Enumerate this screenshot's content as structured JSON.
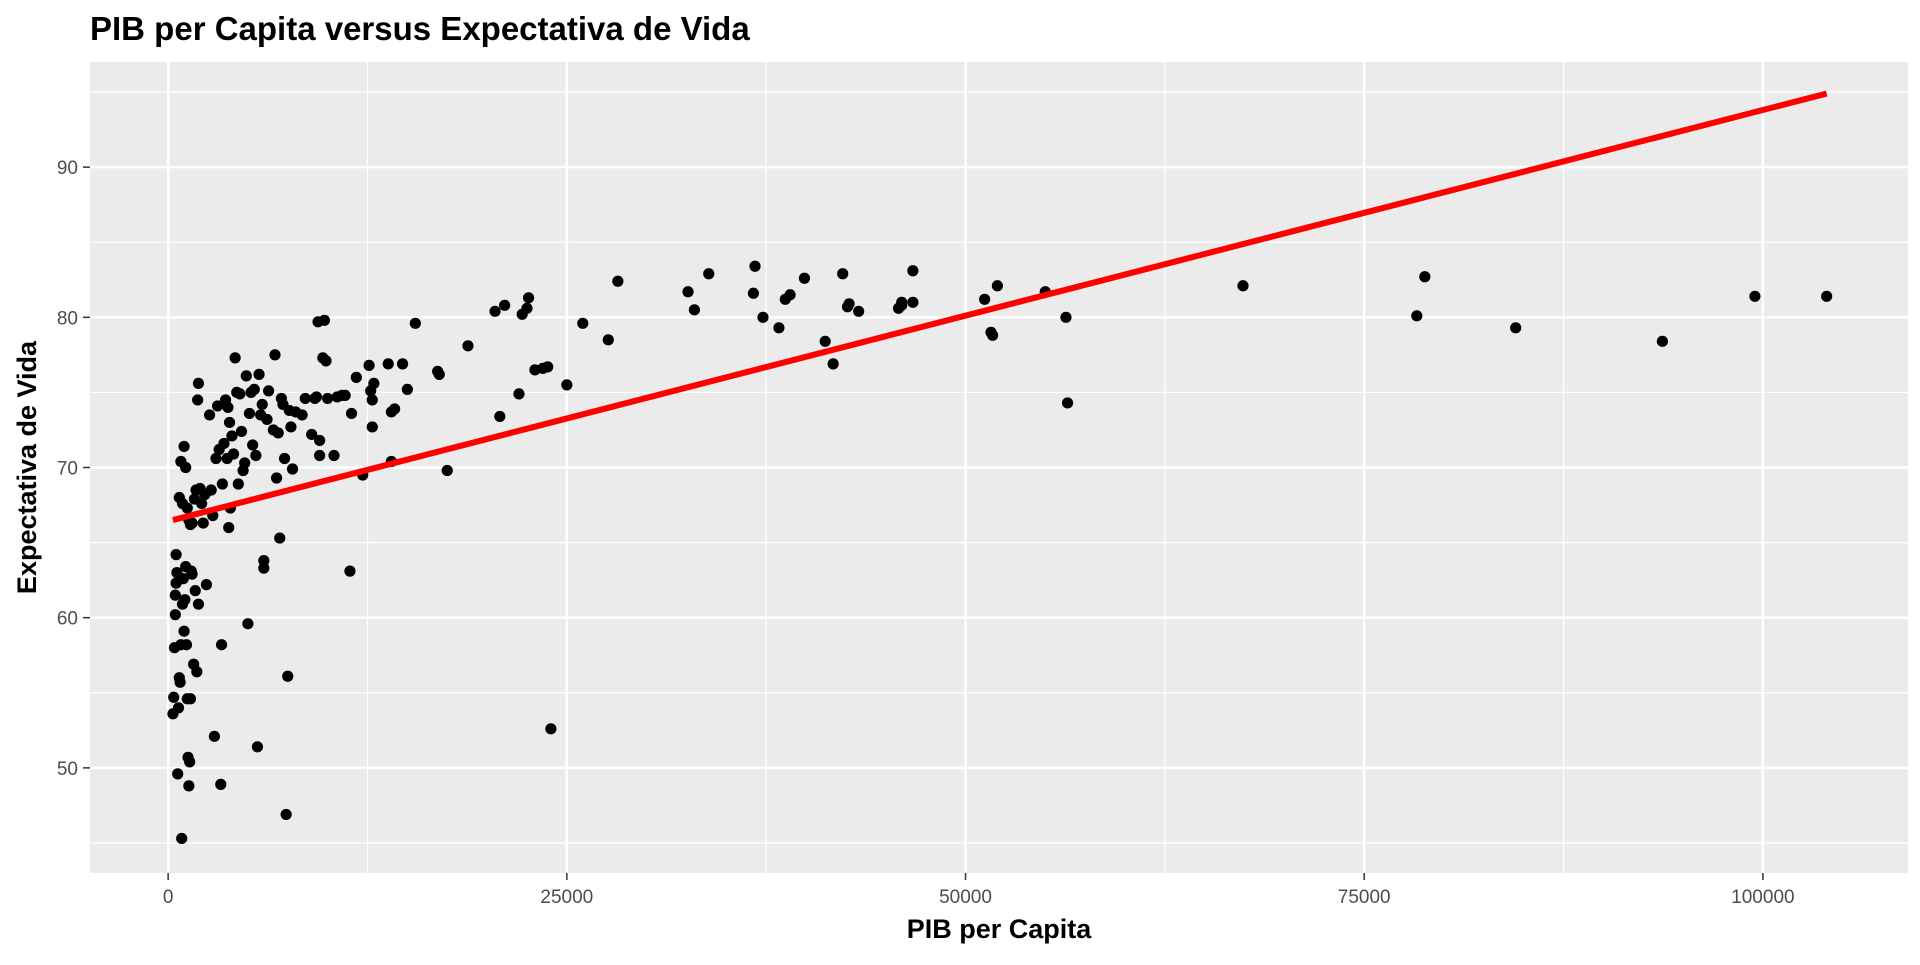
{
  "chart_data": {
    "type": "scatter",
    "title": "PIB per Capita versus Expectativa de Vida",
    "xlabel": "PIB per Capita",
    "ylabel": "Expectativa de Vida",
    "xlim": [
      -4900,
      109100
    ],
    "ylim": [
      43.0,
      97.0
    ],
    "x_ticks": [
      0,
      25000,
      50000,
      75000,
      100000
    ],
    "x_tick_labels": [
      "0",
      "25000",
      "50000",
      "75000",
      "100000"
    ],
    "y_ticks": [
      50,
      60,
      70,
      80,
      90
    ],
    "y_tick_labels": [
      "50",
      "60",
      "70",
      "80",
      "90"
    ],
    "grid": true,
    "colors": {
      "panel_background": "#ebebeb",
      "grid_line": "#ffffff",
      "point": "#000000",
      "trend_line": "#ff0000",
      "tick_label": "#4d4d4d",
      "tick_mark": "#333333"
    },
    "trend_line": {
      "x": [
        300,
        104000
      ],
      "y": [
        66.5,
        94.9
      ]
    },
    "points": [
      [
        300,
        53.6
      ],
      [
        350,
        54.7
      ],
      [
        400,
        58.0
      ],
      [
        450,
        60.2
      ],
      [
        450,
        61.5
      ],
      [
        500,
        62.3
      ],
      [
        500,
        64.2
      ],
      [
        550,
        63.0
      ],
      [
        600,
        49.6
      ],
      [
        650,
        54.0
      ],
      [
        700,
        56.0
      ],
      [
        750,
        55.7
      ],
      [
        800,
        58.2
      ],
      [
        850,
        45.3
      ],
      [
        900,
        60.9
      ],
      [
        950,
        62.6
      ],
      [
        1000,
        59.1
      ],
      [
        1050,
        61.2
      ],
      [
        1100,
        63.4
      ],
      [
        1150,
        58.2
      ],
      [
        1200,
        54.6
      ],
      [
        1250,
        50.7
      ],
      [
        1300,
        48.8
      ],
      [
        1350,
        50.4
      ],
      [
        1400,
        54.6
      ],
      [
        1450,
        63.1
      ],
      [
        1500,
        62.9
      ],
      [
        700,
        68.0
      ],
      [
        800,
        70.4
      ],
      [
        900,
        67.6
      ],
      [
        1000,
        71.4
      ],
      [
        1100,
        70.0
      ],
      [
        1200,
        67.3
      ],
      [
        1300,
        66.5
      ],
      [
        1400,
        66.2
      ],
      [
        1500,
        66.3
      ],
      [
        1600,
        56.9
      ],
      [
        1700,
        61.8
      ],
      [
        1800,
        56.4
      ],
      [
        1900,
        60.9
      ],
      [
        1650,
        67.9
      ],
      [
        1750,
        68.5
      ],
      [
        1850,
        74.5
      ],
      [
        1900,
        75.6
      ],
      [
        2000,
        68.6
      ],
      [
        2100,
        67.6
      ],
      [
        2200,
        66.3
      ],
      [
        2300,
        68.2
      ],
      [
        2400,
        62.2
      ],
      [
        2600,
        73.5
      ],
      [
        2700,
        68.5
      ],
      [
        2800,
        66.8
      ],
      [
        2900,
        52.1
      ],
      [
        3000,
        70.6
      ],
      [
        3100,
        74.1
      ],
      [
        3200,
        71.2
      ],
      [
        3300,
        48.9
      ],
      [
        3350,
        58.2
      ],
      [
        3400,
        68.9
      ],
      [
        3500,
        71.6
      ],
      [
        3600,
        74.5
      ],
      [
        3700,
        70.6
      ],
      [
        3750,
        74.0
      ],
      [
        3800,
        66.0
      ],
      [
        3850,
        73.0
      ],
      [
        3900,
        67.3
      ],
      [
        4000,
        72.1
      ],
      [
        4100,
        70.9
      ],
      [
        4200,
        77.3
      ],
      [
        4300,
        75.0
      ],
      [
        4400,
        68.9
      ],
      [
        4500,
        74.9
      ],
      [
        4600,
        72.4
      ],
      [
        4700,
        69.8
      ],
      [
        4800,
        70.3
      ],
      [
        4900,
        76.1
      ],
      [
        5000,
        59.6
      ],
      [
        5100,
        73.6
      ],
      [
        5200,
        75.0
      ],
      [
        5300,
        71.5
      ],
      [
        5400,
        75.2
      ],
      [
        5500,
        70.8
      ],
      [
        5600,
        51.4
      ],
      [
        5700,
        76.2
      ],
      [
        5800,
        73.5
      ],
      [
        5900,
        74.2
      ],
      [
        6000,
        63.8
      ],
      [
        6000,
        63.3
      ],
      [
        6200,
        73.2
      ],
      [
        6300,
        75.1
      ],
      [
        6600,
        72.5
      ],
      [
        6700,
        77.5
      ],
      [
        6800,
        69.3
      ],
      [
        6900,
        72.3
      ],
      [
        7000,
        65.3
      ],
      [
        7100,
        74.6
      ],
      [
        7200,
        74.2
      ],
      [
        7300,
        70.6
      ],
      [
        7400,
        46.9
      ],
      [
        7500,
        56.1
      ],
      [
        7600,
        73.8
      ],
      [
        7700,
        72.7
      ],
      [
        7800,
        69.9
      ],
      [
        8000,
        73.7
      ],
      [
        8400,
        73.5
      ],
      [
        8600,
        74.6
      ],
      [
        9000,
        72.2
      ],
      [
        9200,
        74.6
      ],
      [
        9300,
        74.7
      ],
      [
        9400,
        79.7
      ],
      [
        9500,
        71.8
      ],
      [
        9500,
        70.8
      ],
      [
        9700,
        77.3
      ],
      [
        9800,
        79.8
      ],
      [
        9900,
        77.1
      ],
      [
        10000,
        74.6
      ],
      [
        10400,
        70.8
      ],
      [
        10600,
        74.7
      ],
      [
        10900,
        74.8
      ],
      [
        11100,
        74.8
      ],
      [
        11400,
        63.1
      ],
      [
        11500,
        73.6
      ],
      [
        11800,
        76.0
      ],
      [
        12200,
        69.5
      ],
      [
        12600,
        76.8
      ],
      [
        12700,
        75.1
      ],
      [
        12800,
        74.5
      ],
      [
        12800,
        72.7
      ],
      [
        12900,
        75.6
      ],
      [
        13800,
        76.9
      ],
      [
        14000,
        70.4
      ],
      [
        14000,
        73.7
      ],
      [
        14200,
        73.9
      ],
      [
        14700,
        76.9
      ],
      [
        15000,
        75.2
      ],
      [
        15500,
        79.6
      ],
      [
        16900,
        76.4
      ],
      [
        17000,
        76.2
      ],
      [
        17500,
        69.8
      ],
      [
        18800,
        78.1
      ],
      [
        20500,
        80.4
      ],
      [
        20800,
        73.4
      ],
      [
        21100,
        80.8
      ],
      [
        22000,
        74.9
      ],
      [
        22200,
        80.2
      ],
      [
        22500,
        80.6
      ],
      [
        22600,
        81.3
      ],
      [
        23000,
        76.5
      ],
      [
        23500,
        76.6
      ],
      [
        23800,
        76.7
      ],
      [
        24000,
        52.6
      ],
      [
        25000,
        75.5
      ],
      [
        26000,
        79.6
      ],
      [
        27600,
        78.5
      ],
      [
        28200,
        82.4
      ],
      [
        32600,
        81.7
      ],
      [
        33000,
        80.5
      ],
      [
        33900,
        82.9
      ],
      [
        36700,
        81.6
      ],
      [
        36800,
        83.4
      ],
      [
        37300,
        80.0
      ],
      [
        38300,
        79.3
      ],
      [
        38700,
        81.2
      ],
      [
        39000,
        81.5
      ],
      [
        39900,
        82.6
      ],
      [
        41200,
        78.4
      ],
      [
        41700,
        76.9
      ],
      [
        42300,
        82.9
      ],
      [
        42600,
        80.7
      ],
      [
        42700,
        80.9
      ],
      [
        43300,
        80.4
      ],
      [
        45800,
        80.6
      ],
      [
        46000,
        81.0
      ],
      [
        46000,
        80.8
      ],
      [
        46700,
        81.0
      ],
      [
        46700,
        83.1
      ],
      [
        51200,
        81.2
      ],
      [
        51600,
        79.0
      ],
      [
        51700,
        78.8
      ],
      [
        52000,
        82.1
      ],
      [
        55000,
        81.7
      ],
      [
        56300,
        80.0
      ],
      [
        56400,
        74.3
      ],
      [
        67400,
        82.1
      ],
      [
        78300,
        80.1
      ],
      [
        78800,
        82.7
      ],
      [
        84500,
        79.3
      ],
      [
        93700,
        78.4
      ],
      [
        99500,
        81.4
      ],
      [
        104000,
        81.4
      ]
    ]
  }
}
